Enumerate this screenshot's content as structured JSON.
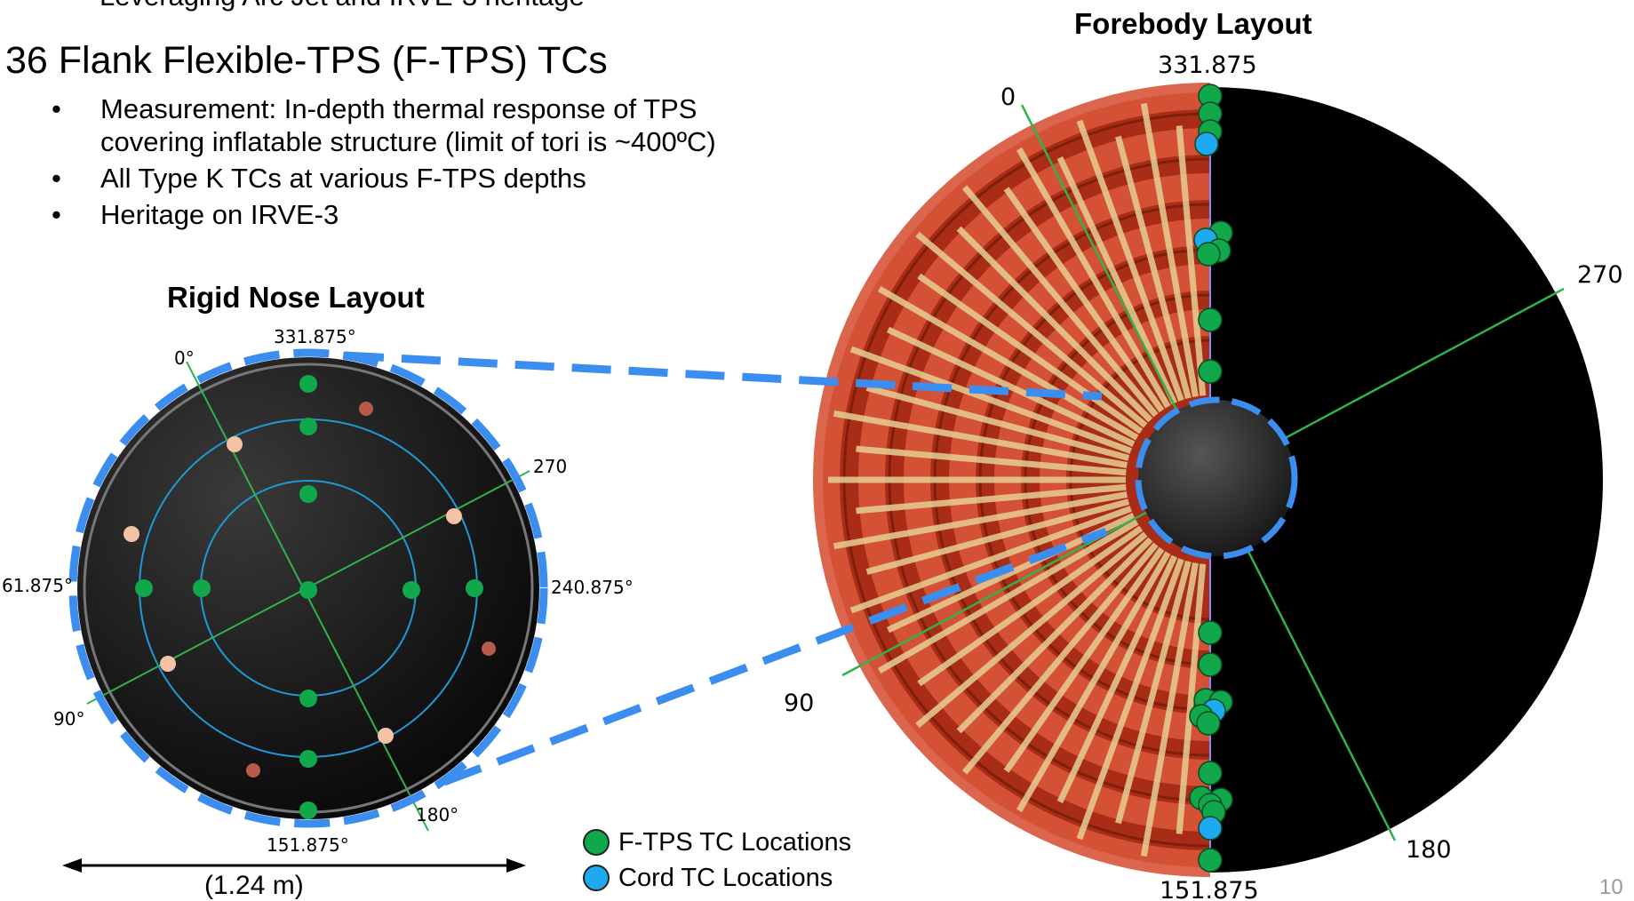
{
  "slide": {
    "previous_bullet_tail": "Leveraging Arc Jet and IRVE-3 heritage",
    "heading": "36 Flank Flexible-TPS (F-TPS) TCs",
    "bullets": [
      {
        "symbol": "•",
        "text": "Measurement: In-depth thermal response of TPS covering inflatable structure (limit of tori is ~400ºC)"
      },
      {
        "symbol": "•",
        "text": "All Type K TCs at various F-TPS depths"
      },
      {
        "symbol": "•",
        "text": "Heritage on IRVE-3"
      }
    ],
    "page_number": "10"
  },
  "nose": {
    "title": "Rigid Nose Layout",
    "labels": {
      "a0": "0°",
      "a331": "331.875°",
      "a270": "270",
      "a61": "61.875°",
      "a240": "240.875°",
      "a90": "90°",
      "a180": "180°",
      "a151": "151.875°"
    },
    "dimension": "(1.24 m)"
  },
  "forebody": {
    "title": "Forebody Layout",
    "labels": {
      "a331": "331.875",
      "a0": "0",
      "a270": "270",
      "a90": "90",
      "a180": "180",
      "a151": "151.875"
    }
  },
  "legend": {
    "items": [
      {
        "label": "F-TPS TC Locations",
        "color": "#10a84a"
      },
      {
        "label": "Cord TC Locations",
        "color": "#1eaaf0"
      }
    ]
  },
  "colors": {
    "ftps": "#10a84a",
    "cord": "#1eaaf0",
    "dash": "#3c8df0",
    "ring": "#1e9ad6",
    "axis": "#2fb34a",
    "torus": "#c33f24",
    "strap": "#e6cf93"
  }
}
